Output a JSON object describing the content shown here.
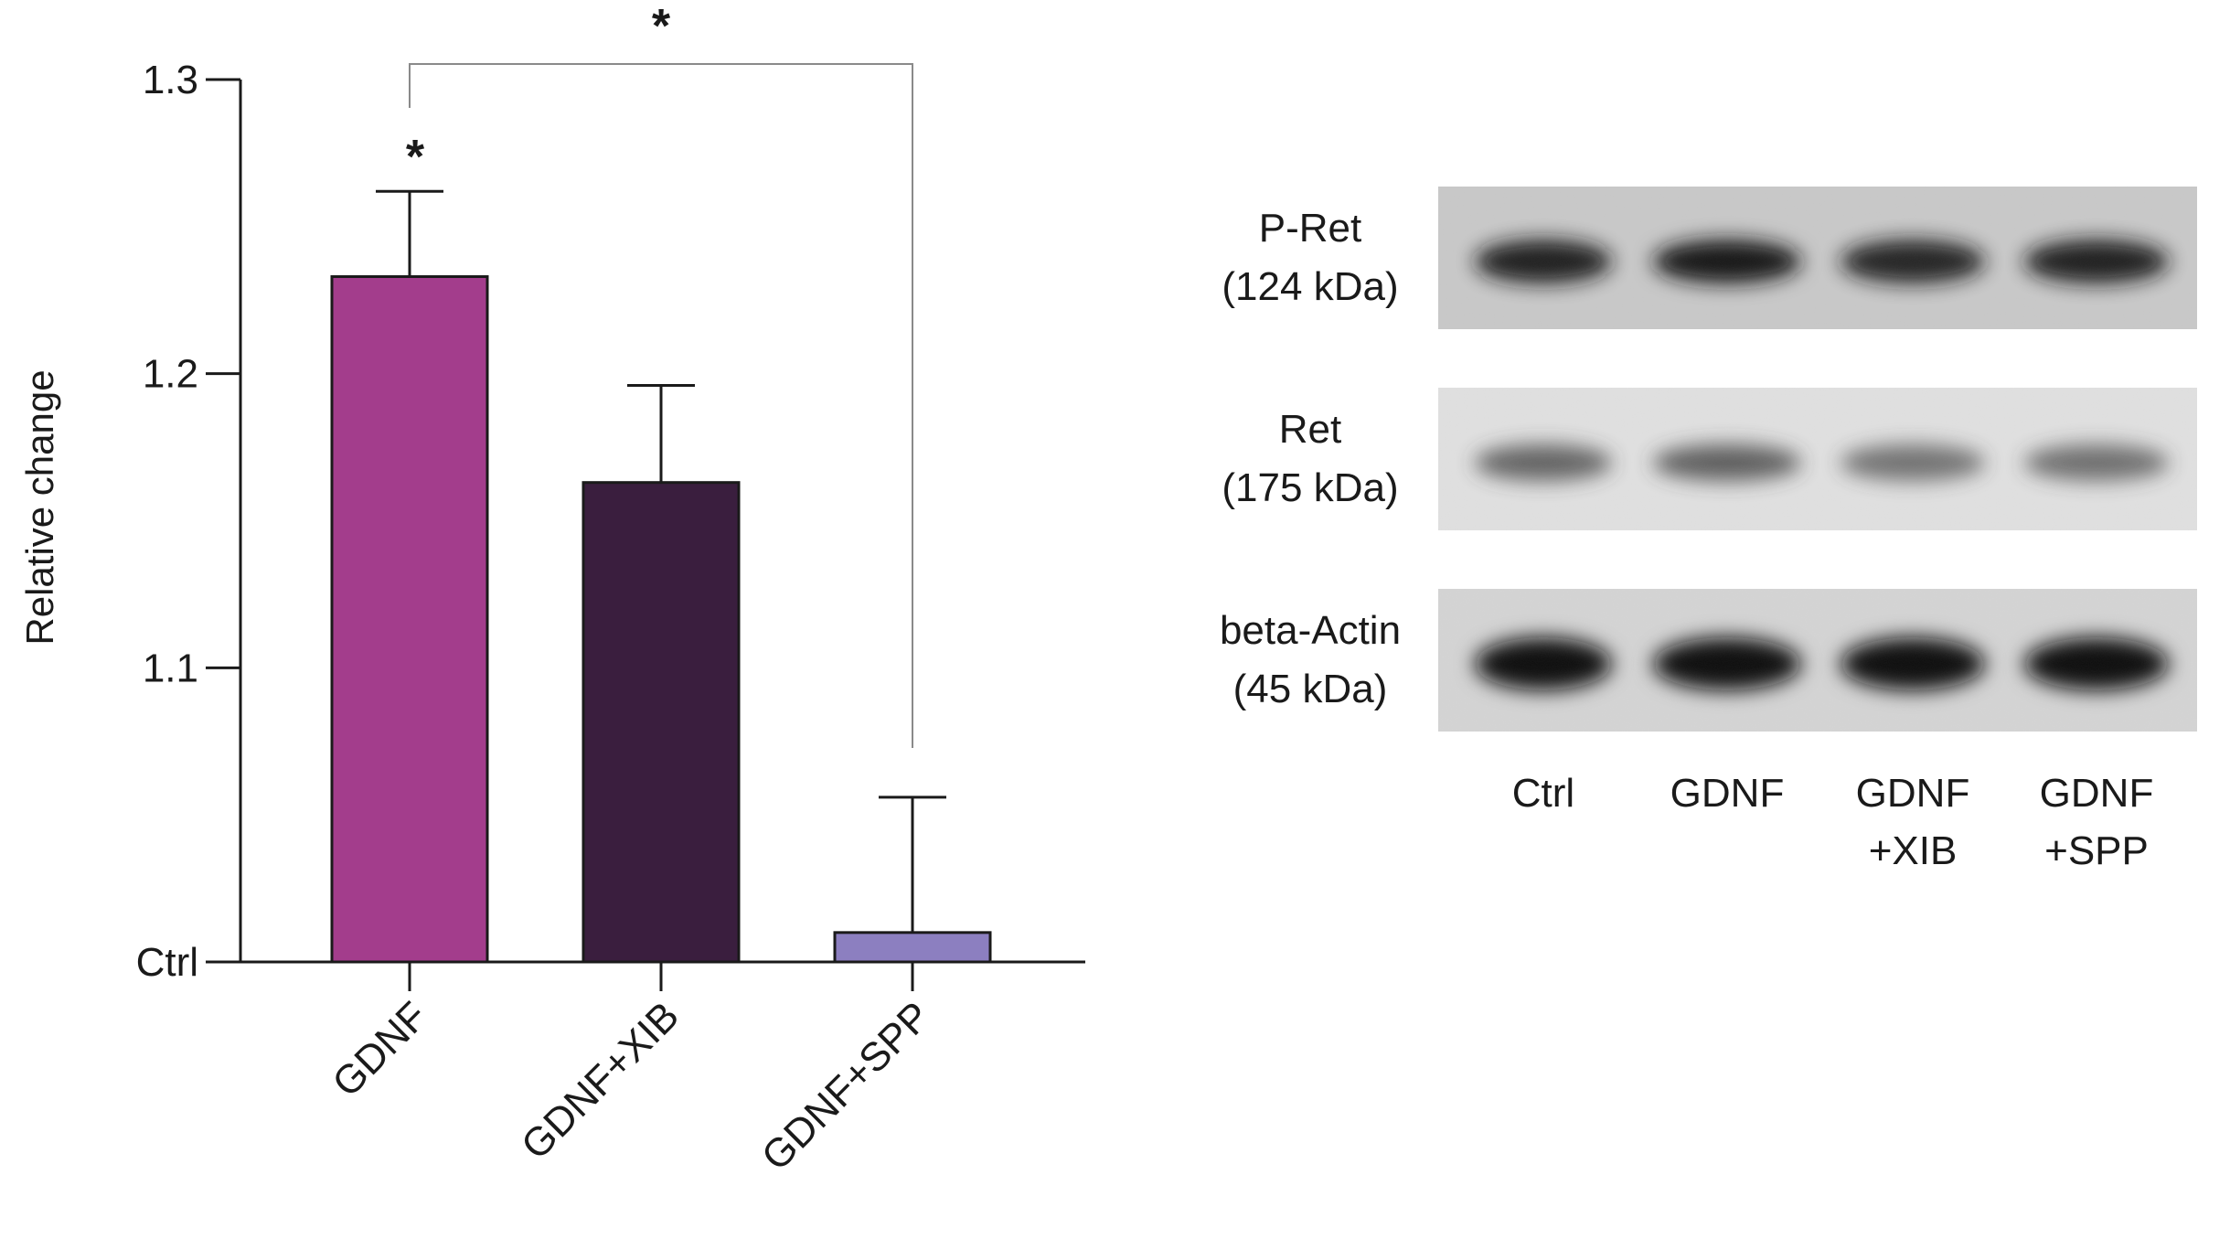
{
  "chart_data": [
    {
      "type": "bar",
      "categories": [
        "GDNF",
        "GDNF+XIB",
        "GDNF+SPP"
      ],
      "series": [
        {
          "values": [
            1.233,
            1.163,
            1.01
          ],
          "error_plus": [
            0.029,
            0.033,
            0.046
          ],
          "colors": [
            "#a33d8c",
            "#3a1e3e",
            "#8c7fc0"
          ]
        }
      ],
      "xlabel": "",
      "ylabel": "Relative change",
      "ylim": [
        1.0,
        1.3
      ],
      "yticks": [
        1.0,
        1.1,
        1.2,
        1.3
      ],
      "ytick_labels": [
        "Ctrl",
        "1.1",
        "1.2",
        "1.3"
      ],
      "grid": false,
      "annotations": [
        {
          "text": "*",
          "target": "GDNF"
        },
        {
          "text": "*",
          "bracket": [
            "GDNF",
            "GDNF+SPP"
          ]
        }
      ]
    },
    {
      "type": "western-blot",
      "lanes": [
        "Ctrl",
        "GDNF",
        "GDNF\n+XIB",
        "GDNF\n+SPP"
      ],
      "rows": [
        {
          "label": "P-Ret",
          "size": "(124 kDa)"
        },
        {
          "label": "Ret",
          "size": "(175 kDa)"
        },
        {
          "label": "beta-Actin",
          "size": "(45 kDa)"
        }
      ]
    }
  ]
}
